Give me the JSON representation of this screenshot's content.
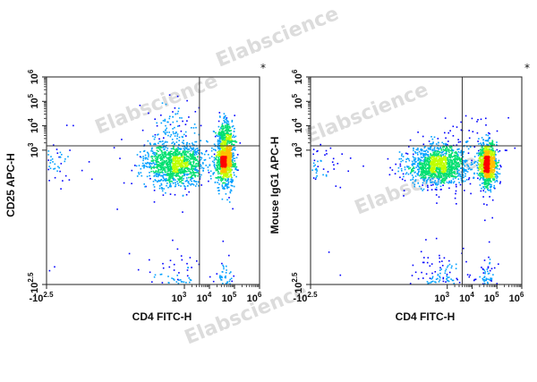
{
  "watermark": "Elabscience",
  "marker": "*",
  "chart_data": [
    {
      "type": "scatter",
      "subtype": "flow-cytometry-density-dot-plot",
      "xlabel": "CD4 FITC-H",
      "ylabel": "CD25 APC-H",
      "x_scale": "biexponential",
      "y_scale": "biexponential",
      "xlim": [
        -316,
        1000000
      ],
      "ylim": [
        -316,
        1000000
      ],
      "x_ticks": [
        {
          "base": "-10",
          "exp": "2.5",
          "value": -316
        },
        {
          "base": "10",
          "exp": "3",
          "value": 1000
        },
        {
          "base": "10",
          "exp": "4",
          "value": 10000
        },
        {
          "base": "10",
          "exp": "5",
          "value": 100000
        },
        {
          "base": "10",
          "exp": "6",
          "value": 1000000
        }
      ],
      "y_ticks": [
        {
          "base": "-10",
          "exp": "2.5",
          "value": -316
        },
        {
          "base": "10",
          "exp": "3",
          "value": 1000
        },
        {
          "base": "10",
          "exp": "4",
          "value": 10000
        },
        {
          "base": "10",
          "exp": "5",
          "value": 100000
        },
        {
          "base": "10",
          "exp": "6",
          "value": 1000000
        }
      ],
      "quadrant_gate": {
        "x": 4000,
        "y": 1500
      },
      "grid": false,
      "color_scale": [
        "#0000ff",
        "#00a0ff",
        "#00e070",
        "#c0ff00",
        "#ffc000",
        "#ff0000"
      ],
      "populations": [
        {
          "center": [
            400,
            300
          ],
          "spread": [
            1.2,
            0.9
          ],
          "weight": 0.5
        },
        {
          "center": [
            40000,
            400
          ],
          "spread": [
            0.35,
            1.0
          ],
          "weight": 0.4
        },
        {
          "center": [
            40000,
            6000
          ],
          "spread": [
            0.3,
            0.6
          ],
          "weight": 0.06
        },
        {
          "center": [
            400,
            5000
          ],
          "spread": [
            1.0,
            1.2
          ],
          "weight": 0.04
        }
      ]
    },
    {
      "type": "scatter",
      "subtype": "flow-cytometry-density-dot-plot",
      "xlabel": "CD4 FITC-H",
      "ylabel": "Mouse IgG1 APC-H",
      "x_scale": "biexponential",
      "y_scale": "biexponential",
      "xlim": [
        -316,
        1000000
      ],
      "ylim": [
        -316,
        1000000
      ],
      "x_ticks": [
        {
          "base": "-10",
          "exp": "2.5",
          "value": -316
        },
        {
          "base": "10",
          "exp": "3",
          "value": 1000
        },
        {
          "base": "10",
          "exp": "4",
          "value": 10000
        },
        {
          "base": "10",
          "exp": "5",
          "value": 100000
        },
        {
          "base": "10",
          "exp": "6",
          "value": 1000000
        }
      ],
      "y_ticks": [
        {
          "base": "-10",
          "exp": "2.5",
          "value": -316
        },
        {
          "base": "10",
          "exp": "3",
          "value": 1000
        },
        {
          "base": "10",
          "exp": "4",
          "value": 10000
        },
        {
          "base": "10",
          "exp": "5",
          "value": 100000
        },
        {
          "base": "10",
          "exp": "6",
          "value": 1000000
        }
      ],
      "quadrant_gate": {
        "x": 4000,
        "y": 1500
      },
      "grid": false,
      "color_scale": [
        "#0000ff",
        "#00a0ff",
        "#00e070",
        "#c0ff00",
        "#ffc000",
        "#ff0000"
      ],
      "populations": [
        {
          "center": [
            400,
            250
          ],
          "spread": [
            1.2,
            0.8
          ],
          "weight": 0.55
        },
        {
          "center": [
            40000,
            280
          ],
          "spread": [
            0.35,
            0.85
          ],
          "weight": 0.42
        },
        {
          "center": [
            5000,
            2000
          ],
          "spread": [
            1.5,
            1.0
          ],
          "weight": 0.03
        }
      ]
    }
  ]
}
